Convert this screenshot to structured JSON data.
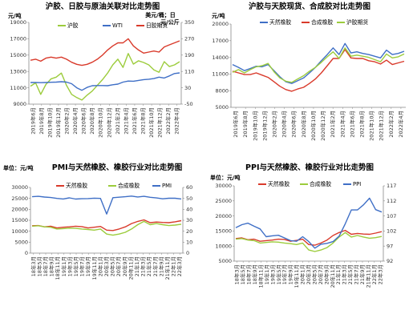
{
  "charts": {
    "p1": {
      "colors": {
        "s0": "#9ccc3c",
        "s1": "#3f6fc6",
        "s2": "#d93a2b"
      },
      "chart_data": {
        "type": "line",
        "title": "沪胶、日胶与原油关联对比走势图",
        "left_unit": "元/吨",
        "right_unit": "美元/桶；日元/公斤",
        "ylim_left": [
          9000,
          19000
        ],
        "yticks_left": [
          9000,
          11000,
          13000,
          15000,
          17000,
          19000
        ],
        "ylim_right": [
          -50,
          350
        ],
        "yticks_right": [
          -50,
          30,
          110,
          190,
          270,
          350
        ],
        "xticks": [
          "2019年6月",
          "2019年8月",
          "2019年10月",
          "2019年12月",
          "2020年2月",
          "2020年4月",
          "2020年6月",
          "2020年8月",
          "2020年10月",
          "2020年12月",
          "2021年2月",
          "2021年4月",
          "2021年6月",
          "2021年8月",
          "2021年10月",
          "2021年12月",
          "2022年2月",
          "2022年4月"
        ],
        "series": [
          {
            "name": "沪胶",
            "axis": "left",
            "values": [
              11200,
              11600,
              10200,
              11400,
              12100,
              12300,
              12800,
              11300,
              10200,
              9800,
              9500,
              10100,
              10600,
              11300,
              12000,
              12800,
              13800,
              14500,
              13500,
              15200,
              13900,
              14300,
              14100,
              13800,
              13200,
              12900,
              14200,
              13600,
              13800,
              14200
            ]
          },
          {
            "name": "WTI",
            "axis": "right",
            "values": [
              56,
              56,
              55,
              56,
              57,
              58,
              60,
              58,
              50,
              30,
              18,
              32,
              40,
              41,
              41,
              40,
              45,
              48,
              58,
              63,
              62,
              66,
              70,
              72,
              75,
              82,
              78,
              88,
              100,
              103
            ]
          },
          {
            "name": "日胶期货",
            "axis": "right",
            "values": [
              165,
              170,
              160,
              175,
              180,
              175,
              180,
              170,
              155,
              145,
              140,
              145,
              155,
              170,
              190,
              215,
              235,
              250,
              250,
              270,
              235,
              215,
              200,
              205,
              210,
              205,
              230,
              240,
              250,
              260
            ]
          }
        ]
      }
    },
    "p2": {
      "colors": {
        "s0": "#3f6fc6",
        "s1": "#d93a2b",
        "s2": "#9ccc3c"
      },
      "chart_data": {
        "type": "line",
        "title": "沪胶与天胶现货、合成胶对比走势图",
        "left_unit": "元/吨",
        "ylim": [
          5000,
          20000
        ],
        "yticks": [
          5000,
          8000,
          11000,
          14000,
          17000,
          20000
        ],
        "xticks": [
          "2019年6月",
          "2019年8月",
          "2019年10月",
          "2019年12月",
          "2020年2月",
          "2020年4月",
          "2020年6月",
          "2020年8月",
          "2020年10月",
          "2020年12月",
          "2021年2月",
          "2021年4月",
          "2021年6月",
          "2021年8月",
          "2021年10月",
          "2021年12月",
          "2022年2月",
          "2022年4月"
        ],
        "series": [
          {
            "name": "天然橡胶",
            "values": [
              12700,
              12200,
              11600,
              12000,
              12400,
              12300,
              12700,
              11600,
              10500,
              9600,
              9300,
              9800,
              10300,
              11200,
              12200,
              13400,
              14500,
              15700,
              14500,
              16500,
              14800,
              15000,
              14700,
              14500,
              14200,
              13900,
              15300,
              14500,
              14700,
              15100
            ]
          },
          {
            "name": "合成橡胶",
            "values": [
              11500,
              11200,
              10900,
              10900,
              11200,
              10800,
              10400,
              9600,
              8800,
              8200,
              7900,
              8300,
              8600,
              9300,
              10100,
              11200,
              12500,
              13800,
              13800,
              15400,
              13900,
              13800,
              13800,
              13400,
              13200,
              12800,
              13500,
              12700,
              13000,
              13300
            ]
          },
          {
            "name": "沪胶期货",
            "values": [
              11300,
              11800,
              11200,
              11800,
              12300,
              12500,
              12900,
              11400,
              10300,
              9700,
              9500,
              10100,
              10700,
              11500,
              12200,
              13100,
              14100,
              15000,
              13800,
              15700,
              14200,
              14400,
              14200,
              14000,
              13600,
              13200,
              14600,
              13900,
              14100,
              14600
            ]
          }
        ]
      }
    },
    "p3": {
      "colors": {
        "s0": "#d93a2b",
        "s1": "#9ccc3c",
        "s2": "#3f6fc6"
      },
      "chart_data": {
        "type": "line",
        "title": "PMI与天然橡胶、橡胶行业对比走势图",
        "left_unit": "单位：元/吨",
        "ylim_left": [
          0,
          30000
        ],
        "yticks_left": [
          0,
          5000,
          10000,
          15000,
          20000,
          25000,
          30000
        ],
        "ylim_right": [
          0,
          60
        ],
        "yticks_right": [
          0,
          10,
          20,
          30,
          40,
          50,
          60
        ],
        "xticks": [
          "18年3月",
          "18年5月",
          "18年7月",
          "18年9月",
          "18年11月",
          "19年1月",
          "19年3月",
          "19年5月",
          "19年7月",
          "19年9月",
          "19年11月",
          "20年1月",
          "20年3月",
          "20年5月",
          "20年7月",
          "20年9月",
          "20年11月",
          "21年1月",
          "21年3月",
          "21年5月",
          "21年7月",
          "21年9月",
          "21年11月",
          "22年1月",
          "22年3月"
        ],
        "series": [
          {
            "name": "天然橡胶",
            "axis": "left",
            "values": [
              12500,
              12600,
              12000,
              12300,
              11500,
              11800,
              12000,
              12300,
              12100,
              11500,
              11800,
              12200,
              10500,
              10300,
              11000,
              12000,
              13500,
              14500,
              15200,
              13900,
              14200,
              14000,
              13900,
              14300,
              14800
            ]
          },
          {
            "name": "合成橡胶",
            "axis": "left",
            "values": [
              12300,
              12500,
              12000,
              11800,
              11000,
              11200,
              11400,
              11300,
              11000,
              10800,
              10500,
              11000,
              8700,
              8200,
              8700,
              9500,
              11000,
              13000,
              14500,
              13000,
              13500,
              13000,
              12600,
              12800,
              13200
            ]
          },
          {
            "name": "PMI",
            "axis": "right",
            "values": [
              51.5,
              51.9,
              51.2,
              50.8,
              50.0,
              49.5,
              50.5,
              49.4,
              49.7,
              49.8,
              50.2,
              50.0,
              35.7,
              50.6,
              51.1,
              51.5,
              52.1,
              51.3,
              51.9,
              51.0,
              50.4,
              49.6,
              50.1,
              50.1,
              49.5
            ]
          }
        ]
      }
    },
    "p4": {
      "colors": {
        "s0": "#d93a2b",
        "s1": "#9ccc3c",
        "s2": "#3f6fc6"
      },
      "chart_data": {
        "type": "line",
        "title": "PPI与天然橡胶、橡胶行业对比走势图",
        "left_unit": "单位：元/吨",
        "ylim_left": [
          5000,
          30000
        ],
        "yticks_left": [
          5000,
          10000,
          15000,
          20000,
          25000,
          30000
        ],
        "ylim_right": [
          92,
          117
        ],
        "yticks_right": [
          92,
          97,
          102,
          107,
          112,
          117
        ],
        "xticks": [
          "18年3月",
          "18年5月",
          "18年7月",
          "18年9月",
          "18年11月",
          "19年1月",
          "19年3月",
          "19年5月",
          "19年7月",
          "19年9月",
          "19年11月",
          "20年1月",
          "20年3月",
          "20年5月",
          "20年7月",
          "20年9月",
          "20年11月",
          "21年1月",
          "21年3月",
          "21年5月",
          "21年7月",
          "21年9月",
          "21年11月",
          "22年1月",
          "22年3月"
        ],
        "series": [
          {
            "name": "天然橡胶",
            "axis": "left",
            "values": [
              12500,
              12700,
              12100,
              12300,
              11600,
              11800,
              12000,
              12300,
              12200,
              11600,
              11900,
              12300,
              10500,
              10300,
              11000,
              12000,
              13500,
              14500,
              15200,
              13900,
              14200,
              14000,
              13900,
              14300,
              14800
            ]
          },
          {
            "name": "合成橡胶",
            "axis": "left",
            "values": [
              12300,
              12500,
              12000,
              11800,
              11000,
              11200,
              11400,
              11300,
              11000,
              10800,
              10500,
              11000,
              8700,
              8200,
              8700,
              9500,
              11000,
              13000,
              14500,
              13000,
              13500,
              13000,
              12600,
              12800,
              13200
            ]
          },
          {
            "name": "PPI",
            "axis": "right",
            "values": [
              103.1,
              104.1,
              104.6,
              103.6,
              102.7,
              100.1,
              100.4,
              100.6,
              99.7,
              98.8,
              98.6,
              100.1,
              98.5,
              96.3,
              97.6,
              97.9,
              98.5,
              100.3,
              104.4,
              109.0,
              109.0,
              110.7,
              112.9,
              109.1,
              108.3
            ]
          }
        ]
      }
    }
  }
}
